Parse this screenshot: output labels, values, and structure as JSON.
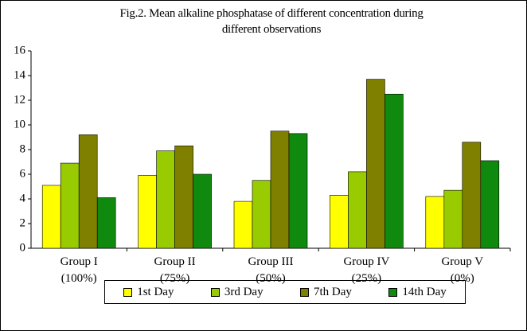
{
  "chart_data": {
    "type": "bar",
    "title": "Fig.2. Mean alkaline phosphatase of different concentration during different observations",
    "categories": [
      "Group I (100%)",
      "Group II (75%)",
      "Group III (50%)",
      "Group IV (25%)",
      "Group V (0%)"
    ],
    "series": [
      {
        "name": "1st Day",
        "color": "#ffff00",
        "values": [
          5.1,
          5.9,
          3.8,
          4.3,
          4.2
        ]
      },
      {
        "name": "3rd Day",
        "color": "#99cc00",
        "values": [
          6.9,
          7.9,
          5.5,
          6.2,
          4.7
        ]
      },
      {
        "name": "7th Day",
        "color": "#808000",
        "values": [
          9.2,
          8.3,
          9.5,
          13.7,
          8.6
        ]
      },
      {
        "name": "14th Day",
        "color": "#0f8a0f",
        "values": [
          4.1,
          6.0,
          9.3,
          12.5,
          7.1
        ]
      }
    ],
    "ylim": [
      0,
      16
    ],
    "yticks": [
      0,
      2,
      4,
      6,
      8,
      10,
      12,
      14,
      16
    ],
    "grid": false,
    "legend": "bottom"
  }
}
